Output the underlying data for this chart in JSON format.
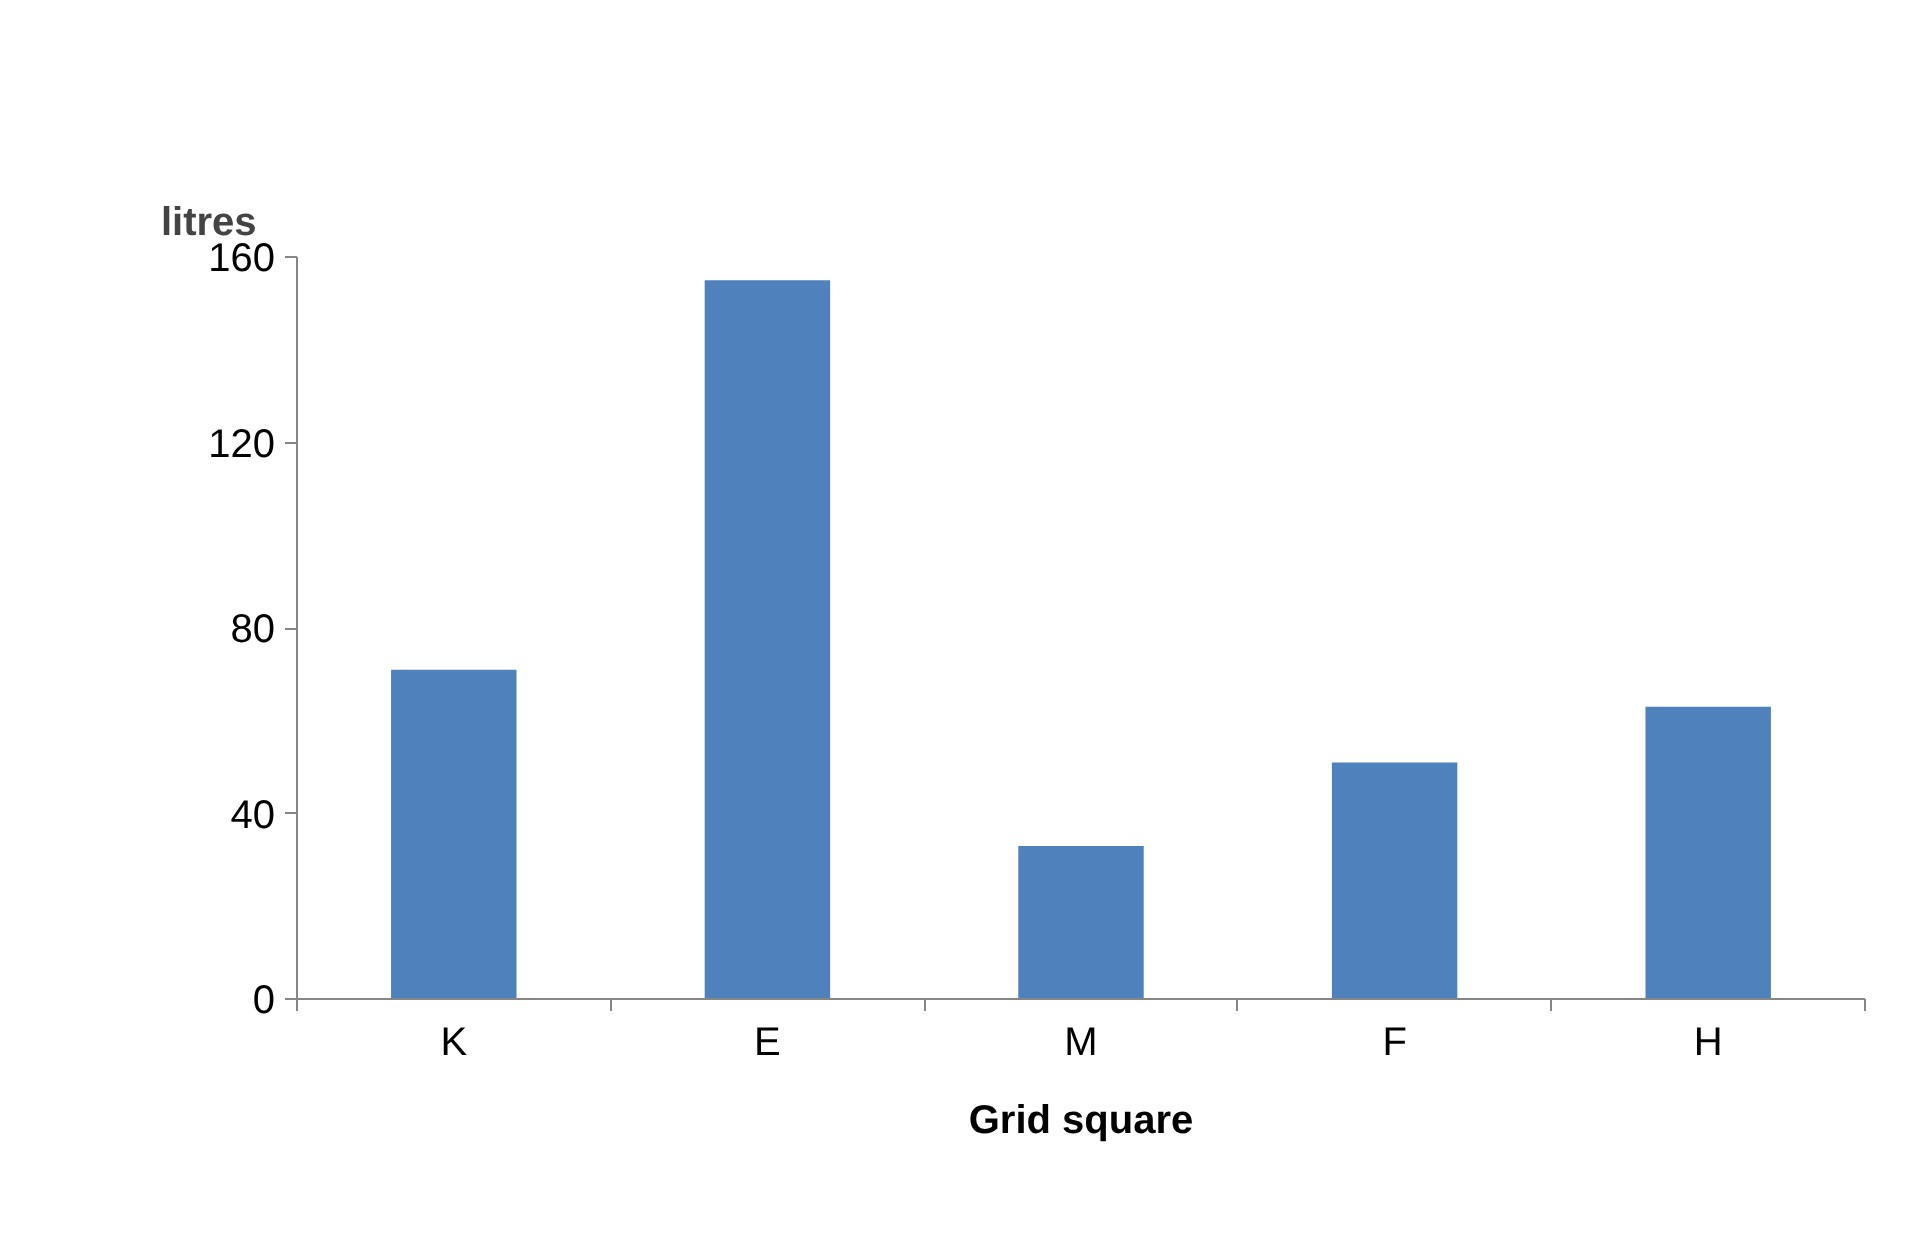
{
  "chart_data": {
    "type": "bar",
    "xlabel": "Grid square",
    "ylabel": "litres",
    "categories": [
      "K",
      "E",
      "M",
      "F",
      "H"
    ],
    "values": [
      71,
      155,
      33,
      51,
      63
    ],
    "color": "#4f81bd",
    "ylim": [
      0,
      160
    ],
    "yticks": [
      0,
      40,
      80,
      120,
      160
    ],
    "grid": false
  }
}
